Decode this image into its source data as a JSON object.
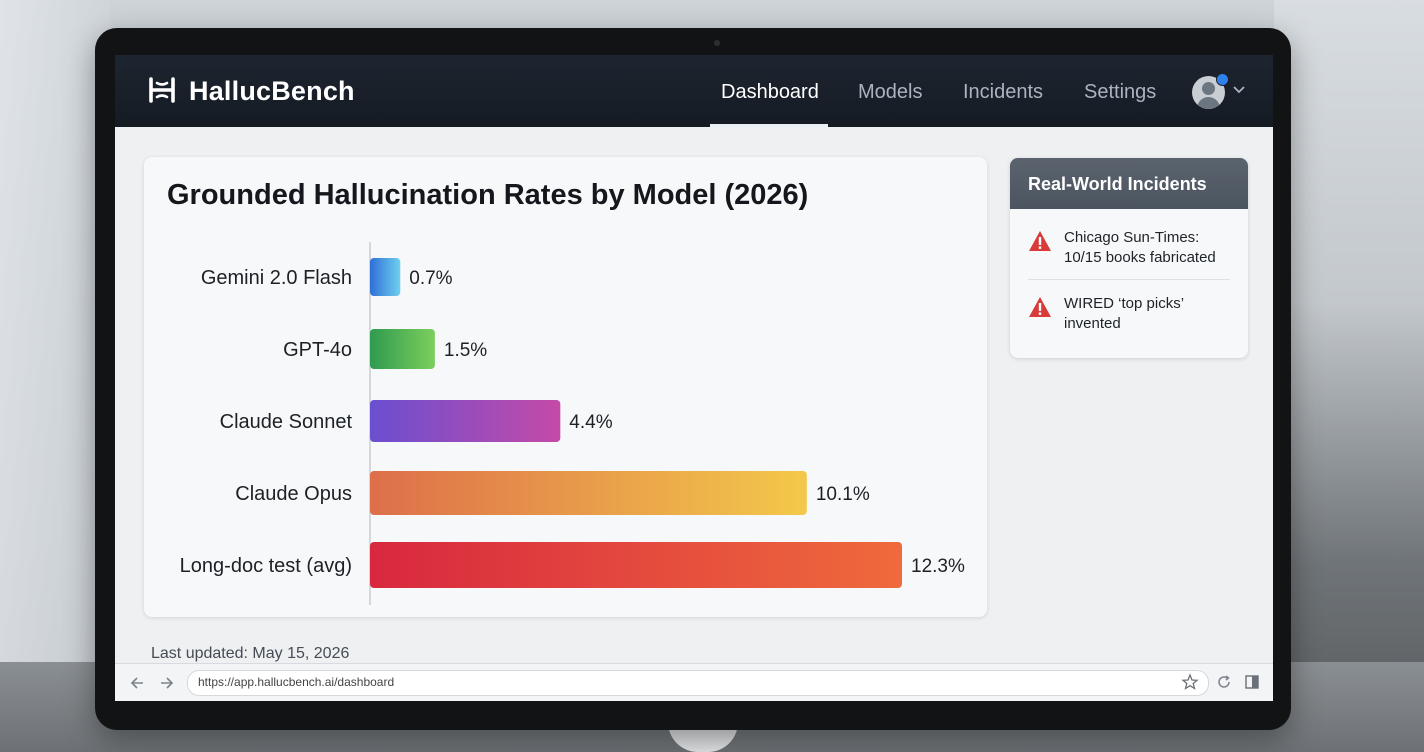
{
  "app": {
    "brand": "HallucBench"
  },
  "nav": {
    "items": [
      {
        "label": "Dashboard",
        "active": true
      },
      {
        "label": "Models",
        "active": false
      },
      {
        "label": "Incidents",
        "active": false
      },
      {
        "label": "Settings",
        "active": false
      }
    ]
  },
  "chart_data": {
    "type": "bar",
    "orientation": "horizontal",
    "title": "Grounded Hallucination Rates by Model (2026)",
    "categories": [
      "Gemini 2.0 Flash",
      "GPT-4o",
      "Claude Sonnet",
      "Claude Opus",
      "Long-doc test (avg)"
    ],
    "values": [
      0.7,
      1.5,
      4.4,
      10.1,
      12.3
    ],
    "value_labels": [
      "0.7%",
      "1.5%",
      "4.4%",
      "10.1%",
      "12.3%"
    ],
    "unit": "%",
    "xlim": [
      0,
      12.3
    ],
    "colors": [
      [
        "#2f6fd6",
        "#6fd0ef"
      ],
      [
        "#2f9a4f",
        "#7ccf5c"
      ],
      [
        "#6a4fd0",
        "#c54aa8"
      ],
      [
        "#dd6f4a",
        "#f3c94a"
      ],
      [
        "#d8283f",
        "#ef6a3c"
      ]
    ],
    "grid": false,
    "legend": "none"
  },
  "incidents": {
    "title": "Real-World Incidents",
    "items": [
      {
        "text": "Chicago Sun-Times: 10/15 books fabricated",
        "icon": "warning-icon"
      },
      {
        "text": "WIRED ‘top picks’ invented",
        "icon": "warning-icon"
      }
    ]
  },
  "footer": {
    "last_updated": "Last updated: May 15, 2026"
  },
  "browser": {
    "url": "https://app.hallucbench.ai/dashboard"
  },
  "colors": {
    "nav_bg": "#1a212b",
    "warning": "#d93a3a",
    "incident_header": "#525b66"
  }
}
